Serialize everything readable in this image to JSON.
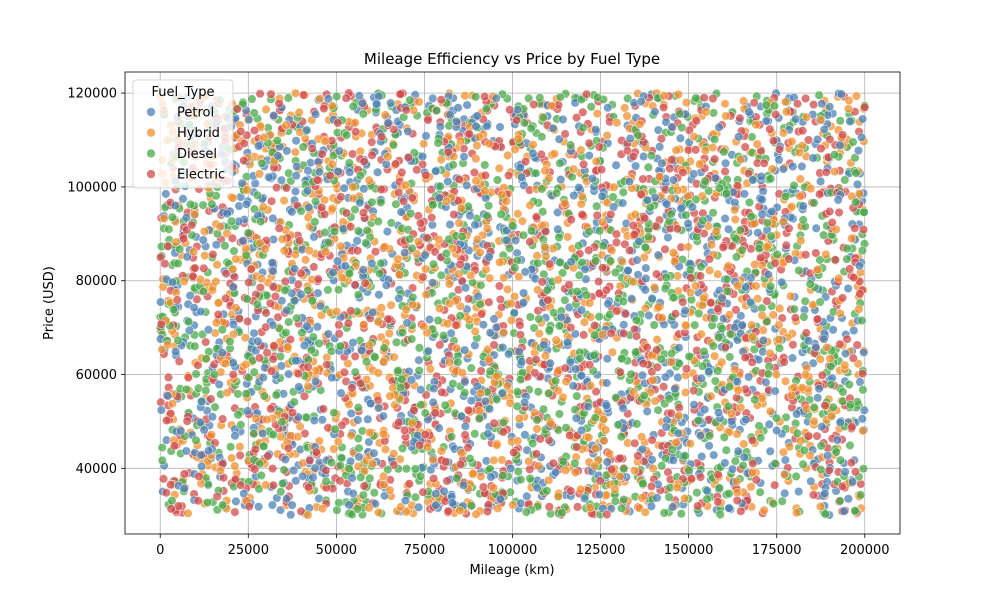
{
  "chart_data": {
    "type": "scatter",
    "title": "Mileage Efficiency vs Price by Fuel Type",
    "xlabel": "Mileage (km)",
    "ylabel": "Price (USD)",
    "xlim": [
      -10000,
      210000
    ],
    "ylim": [
      26000,
      124500
    ],
    "x_ticks": [
      0,
      25000,
      50000,
      75000,
      100000,
      125000,
      150000,
      175000,
      200000
    ],
    "y_ticks": [
      40000,
      60000,
      80000,
      100000,
      120000
    ],
    "grid": true,
    "legend": {
      "title": "Fuel_Type",
      "placement": "top-left"
    },
    "series": [
      {
        "name": "Petrol",
        "color": "#4c82b4"
      },
      {
        "name": "Hybrid",
        "color": "#f0902f"
      },
      {
        "name": "Diesel",
        "color": "#4aa84a"
      },
      {
        "name": "Electric",
        "color": "#d24b4b"
      }
    ],
    "data_range": {
      "x": [
        0,
        200000
      ],
      "y": [
        30000,
        120000
      ]
    },
    "point_opacity": 0.75
  }
}
